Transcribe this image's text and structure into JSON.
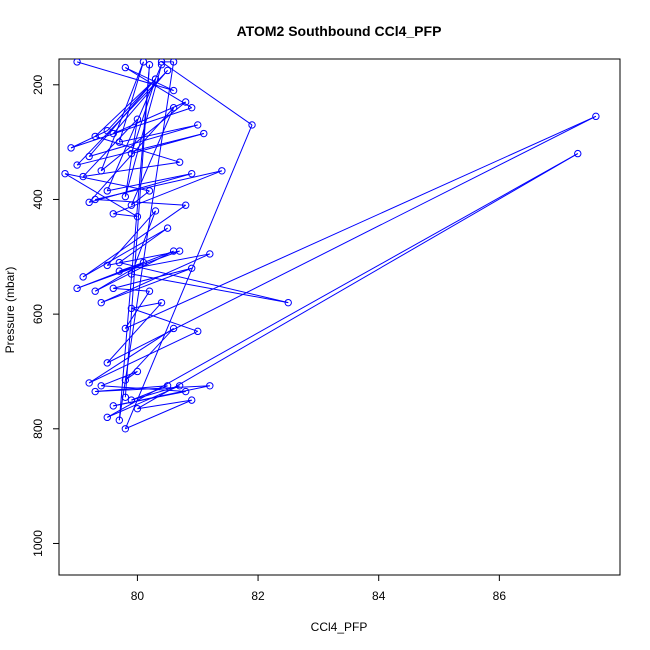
{
  "chart_data": {
    "type": "line",
    "title": "ATOM2 Southbound CCl4_PFP",
    "xlabel": "CCl4_PFP",
    "ylabel": "Pressure (mbar)",
    "xlim": [
      78.7,
      88.0
    ],
    "ylim": [
      1055,
      155
    ],
    "x_ticks": [
      80,
      82,
      84,
      86
    ],
    "y_ticks": [
      200,
      400,
      600,
      800,
      1000
    ],
    "grid": false,
    "legend": "none",
    "series_color": "#0000ff",
    "x": [
      79.0,
      80.6,
      79.8,
      80.9,
      78.9,
      79.5,
      80.3,
      79.2,
      81.0,
      79.7,
      80.1,
      79.4,
      80.8,
      79.6,
      80.5,
      79.0,
      81.1,
      79.9,
      80.3,
      79.3,
      80.7,
      79.1,
      80.0,
      79.8,
      80.4,
      79.5,
      80.9,
      79.2,
      80.6,
      79.9,
      80.2,
      78.8,
      80.0,
      79.6,
      81.4,
      79.3,
      80.8,
      79.1,
      80.5,
      79.7,
      82.5,
      79.9,
      80.3,
      79.5,
      80.7,
      79.0,
      80.6,
      79.3,
      80.1,
      79.7,
      81.2,
      79.4,
      80.9,
      79.6,
      80.2,
      79.8,
      87.6,
      79.5,
      80.4,
      79.9,
      81.0,
      79.2,
      80.6,
      79.8,
      80.0,
      79.4,
      80.8,
      79.6,
      81.2,
      79.3,
      80.5,
      79.9,
      80.7,
      79.5,
      87.3,
      80.0,
      80.9,
      79.8,
      81.9,
      80.4,
      80.6,
      79.7,
      80.2,
      79.8
    ],
    "y": [
      160,
      210,
      170,
      240,
      310,
      280,
      190,
      325,
      270,
      300,
      160,
      350,
      230,
      285,
      175,
      340,
      285,
      320,
      190,
      290,
      335,
      360,
      260,
      395,
      165,
      385,
      355,
      405,
      240,
      410,
      385,
      355,
      430,
      425,
      350,
      400,
      410,
      535,
      450,
      510,
      580,
      530,
      420,
      515,
      490,
      555,
      490,
      560,
      510,
      525,
      495,
      580,
      520,
      555,
      560,
      625,
      255,
      685,
      580,
      590,
      630,
      720,
      625,
      715,
      700,
      725,
      735,
      760,
      725,
      735,
      725,
      750,
      725,
      780,
      320,
      765,
      750,
      800,
      270,
      160,
      160,
      785,
      165,
      745
    ]
  }
}
